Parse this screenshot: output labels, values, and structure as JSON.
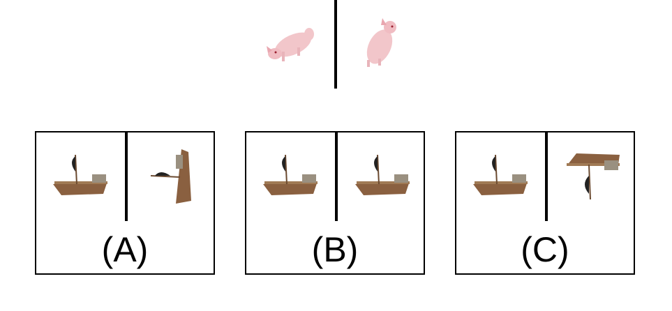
{
  "question": {
    "example_left_icon": "pig-facing-left-icon",
    "example_right_icon": "pig-rotated-icon"
  },
  "options": [
    {
      "label": "(A)",
      "left_icon": "pirate-ship-icon",
      "right_icon": "pirate-ship-rotated-90-icon"
    },
    {
      "label": "(B)",
      "left_icon": "pirate-ship-icon",
      "right_icon": "pirate-ship-icon"
    },
    {
      "label": "(C)",
      "left_icon": "pirate-ship-icon",
      "right_icon": "pirate-ship-upside-down-icon"
    }
  ],
  "colors": {
    "pig": "#f0c4c8",
    "ship_hull": "#8a6040",
    "ship_sail": "#222222",
    "frame": "#000000"
  }
}
